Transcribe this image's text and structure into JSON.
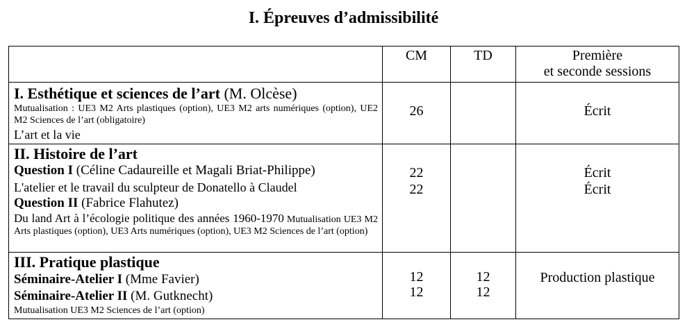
{
  "title": "I. Épreuves d’admissibilité",
  "headers": {
    "cm": "CM",
    "td": "TD",
    "sessions_l1": "Première",
    "sessions_l2": "et seconde sessions"
  },
  "s1": {
    "title": "I. Esthétique et sciences de l’art",
    "lecturer": "(M. Olcèse)",
    "mutualisation": "Mutualisation : UE3 M2 Arts plastiques (option), UE3 M2 arts numériques (op­tion), UE2 M2 Sciences de l’art (obligatoire)",
    "course": "L’art et la vie",
    "cm": "26",
    "session": "Écrit"
  },
  "s2": {
    "title": "II. Histoire de l’art",
    "q1_label": "Question I",
    "q1_lecturer": " (Céline Cadaureille et Magali Briat-Philippe)",
    "q1_course": "L'atelier et le travail du sculpteur de Donatello à Claudel",
    "q1_cm_a": "22",
    "q1_cm_b": "22",
    "q1_session_a": "Écrit",
    "q1_session_b": "Écrit",
    "q2_label": "Question II",
    "q2_lecturer": " (Fabrice Flahutez)",
    "q2_course": "Du land Art à l’écologie politique des années 1960-1970",
    "q2_mutualisation": "Mutualisation UE3 M2 Arts plastiques (option), UE3 Arts numériques (option), UE3 M2 Sciences de l’art (option)"
  },
  "s3": {
    "title": "III. Pratique plastique",
    "a1_label": "Séminaire-Atelier I",
    "a1_lecturer": " (Mme Favier)",
    "a2_label": "Séminaire-Atelier II",
    "a2_lecturer": " (M. Gutknecht)",
    "mutualisation": "Mutualisation UE3 M2 Sciences de l’art (option)",
    "a1_cm": "12",
    "a2_cm": "12",
    "a1_td": "12",
    "a2_td": "12",
    "session": "Production plastique"
  }
}
